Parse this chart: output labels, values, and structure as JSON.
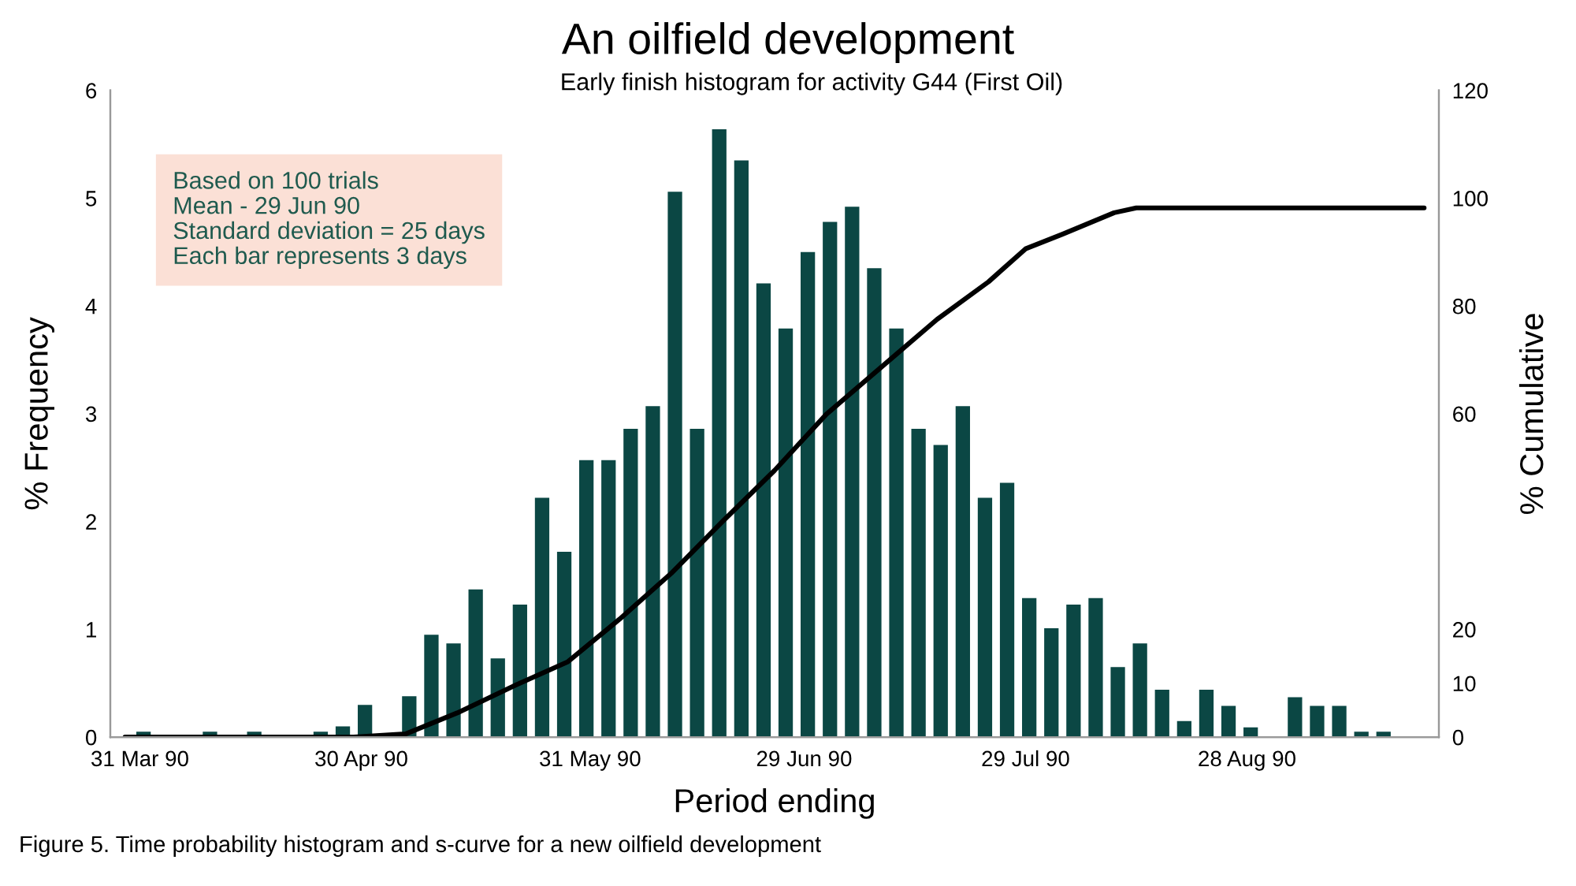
{
  "chart_data": {
    "type": "histogram",
    "title": "An oilfield development",
    "subtitle": "Early finish histogram for activity G44 (First Oil)",
    "xlabel": "Period ending",
    "ylabel": "% Frequency",
    "y2label": "% Cumulative",
    "annotations": [
      "Based on 100 trials",
      "Mean - 29 Jun 90",
      "Standard deviation = 25 days",
      "Each bar represents 3 days",
      "Figure 5. Time probability histogram and s-curve for a new oilfield development"
    ],
    "bins": [
      "1990-03-30",
      "1990-04-02",
      "1990-04-05",
      "1990-04-08",
      "1990-04-11",
      "1990-04-14",
      "1990-04-17",
      "1990-04-20",
      "1990-04-23",
      "1990-04-26",
      "1990-04-29",
      "1990-05-02",
      "1990-05-05",
      "1990-05-08",
      "1990-05-11",
      "1990-05-14",
      "1990-05-17",
      "1990-05-20",
      "1990-05-23",
      "1990-05-26",
      "1990-05-29",
      "1990-06-01",
      "1990-06-04",
      "1990-06-07",
      "1990-06-10",
      "1990-06-13",
      "1990-06-16",
      "1990-06-19",
      "1990-06-22",
      "1990-06-25",
      "1990-06-28",
      "1990-07-01",
      "1990-07-04",
      "1990-07-07",
      "1990-07-10",
      "1990-07-13",
      "1990-07-16",
      "1990-07-19",
      "1990-07-22",
      "1990-07-25",
      "1990-07-28",
      "1990-07-31",
      "1990-08-03",
      "1990-08-06",
      "1990-08-09",
      "1990-08-12",
      "1990-08-15",
      "1990-08-18",
      "1990-08-21",
      "1990-08-24",
      "1990-08-27",
      "1990-08-30",
      "1990-09-02",
      "1990-09-05",
      "1990-09-08",
      "1990-09-11",
      "1990-09-14",
      "1990-09-17"
    ],
    "series": [
      {
        "color": "#0b4744",
        "values": [
          0.05,
          0,
          0,
          0.05,
          0,
          0.05,
          0,
          0,
          0.05,
          0.1,
          0.3,
          0,
          0.38,
          0.95,
          0.87,
          1.37,
          0.73,
          1.23,
          2.22,
          1.72,
          2.57,
          2.57,
          2.86,
          3.07,
          5.06,
          2.86,
          5.64,
          5.35,
          4.21,
          3.79,
          4.5,
          4.78,
          4.92,
          4.35,
          3.79,
          2.86,
          2.71,
          3.07,
          2.22,
          2.36,
          1.29,
          1.01,
          1.23,
          1.29,
          0.65,
          0.87,
          0.44,
          0.15,
          0.44,
          0.29,
          0.09,
          0,
          0.37,
          0.29,
          0.29,
          0.05,
          0.05
        ]
      },
      {
        "type": "line",
        "axis": "y2",
        "color": "#000000",
        "x": [
          "1990-03-29",
          "1990-04-29",
          "1990-05-06",
          "1990-05-13",
          "1990-05-21",
          "1990-05-28",
          "1990-06-04",
          "1990-06-11",
          "1990-06-18",
          "1990-06-25",
          "1990-07-02",
          "1990-07-10",
          "1990-07-17",
          "1990-07-24",
          "1990-07-29",
          "1990-08-03",
          "1990-08-10",
          "1990-08-13",
          "1990-09-21"
        ],
        "values": [
          0,
          0,
          0.6,
          4.5,
          9.7,
          14,
          21.9,
          30.4,
          40.1,
          49.5,
          59.9,
          69.3,
          77.5,
          84.5,
          90.6,
          93.3,
          97.3,
          98.2,
          98.2
        ]
      }
    ],
    "xlim": [
      "1990-03-27",
      "1990-09-23"
    ],
    "xticks": [
      {
        "value": "1990-03-31",
        "label": "31 Mar 90"
      },
      {
        "value": "1990-04-30",
        "label": "30 Apr 90"
      },
      {
        "value": "1990-05-31",
        "label": "31 May 90"
      },
      {
        "value": "1990-06-29",
        "label": "29 Jun 90"
      },
      {
        "value": "1990-07-29",
        "label": "29 Jul 90"
      },
      {
        "value": "1990-08-28",
        "label": "28 Aug 90"
      }
    ],
    "ylim": [
      0,
      6
    ],
    "yticks": [
      0,
      1,
      2,
      3,
      4,
      5,
      6
    ],
    "y2lim": [
      0,
      120
    ],
    "y2ticks": [
      0,
      10,
      20,
      60,
      80,
      100,
      120
    ],
    "grid": false,
    "legend": false
  }
}
